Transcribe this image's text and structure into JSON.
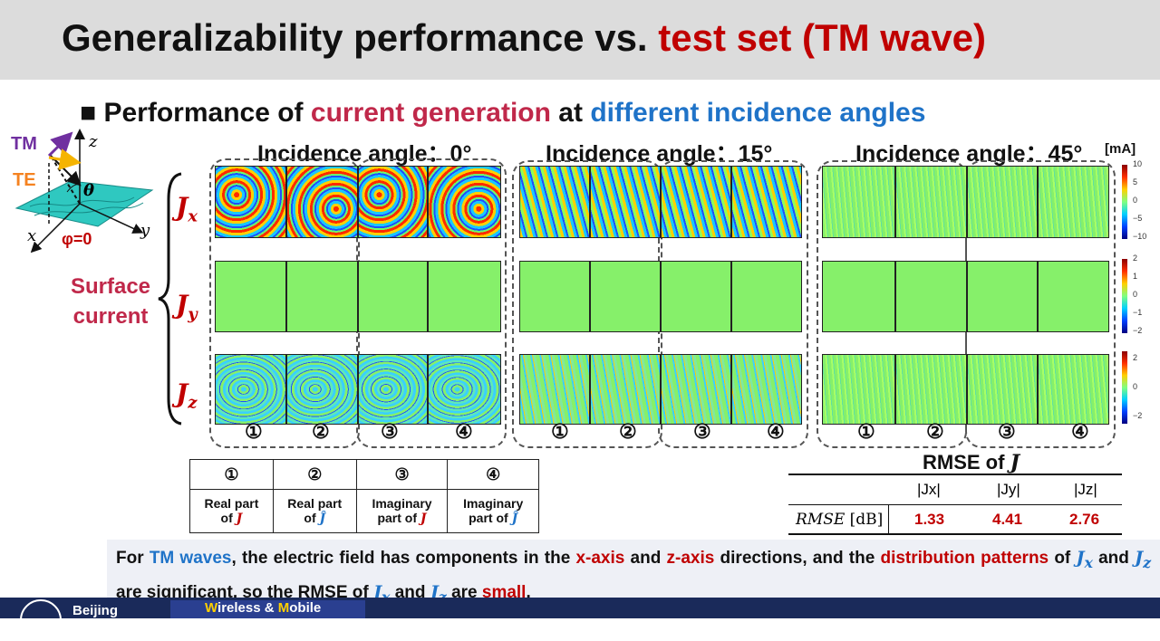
{
  "header": {
    "title_black": "Generalizability performance vs.",
    "title_red": "test set (TM wave)"
  },
  "subtitle": {
    "bullet": "■",
    "p1": "Performance of",
    "p2": "current generation",
    "p3": "at",
    "p4": "different incidence angles"
  },
  "angles": [
    {
      "label": "Incidence angle：0°"
    },
    {
      "label": "Incidence angle：15°"
    },
    {
      "label": "Incidence angle：45°"
    }
  ],
  "unit": "[mA]",
  "diagram": {
    "tm": "TM",
    "te": "TE",
    "z": "z",
    "x": "x",
    "y": "y",
    "theta": "θ",
    "phi": "φ=0"
  },
  "rows": [
    {
      "j": "J",
      "sub": "x"
    },
    {
      "j": "J",
      "sub": "y"
    },
    {
      "j": "J",
      "sub": "z"
    }
  ],
  "surface_current": "Surface current",
  "circled": [
    "①",
    "②",
    "③",
    "④"
  ],
  "colorbars": [
    {
      "ticks": [
        "10",
        "5",
        "0",
        "−5",
        "−10"
      ]
    },
    {
      "ticks": [
        "2",
        "1",
        "0",
        "−1",
        "−2"
      ]
    },
    {
      "ticks": [
        "2",
        "0",
        "−2"
      ]
    }
  ],
  "legend": [
    {
      "num": "①",
      "l1": "Real part",
      "l2": "of",
      "sym": "J"
    },
    {
      "num": "②",
      "l1": "Real part",
      "l2": "of",
      "sym": "Ĵ"
    },
    {
      "num": "③",
      "l1": "Imaginary",
      "l2": "part of",
      "sym": "J"
    },
    {
      "num": "④",
      "l1": "Imaginary",
      "l2": "part of",
      "sym": "Ĵ"
    }
  ],
  "rmse": {
    "title": "RMSE of",
    "title_sym": "J",
    "row_label": "RMSE",
    "row_unit": "[dB]",
    "cols": [
      "|Jx|",
      "|Jy|",
      "|Jz|"
    ],
    "values": [
      "1.33",
      "4.41",
      "2.76"
    ]
  },
  "note": {
    "t1": "For",
    "t2": "TM waves",
    "t3": ", the electric field has components in the",
    "t4": "x-axis",
    "t5": "and",
    "t6": "z-axis",
    "t7": "directions, and the",
    "t8": "distribution patterns",
    "t9": "of",
    "t10": "and",
    "t11": "are significant,  so the RMSE of",
    "t12": "and",
    "t13": "are",
    "t14": "small",
    "t15": "."
  },
  "footer": {
    "left": "Beijing",
    "right_w": "W",
    "right_1": "ireless &",
    "right_m": "M",
    "right_2": "obile"
  }
}
